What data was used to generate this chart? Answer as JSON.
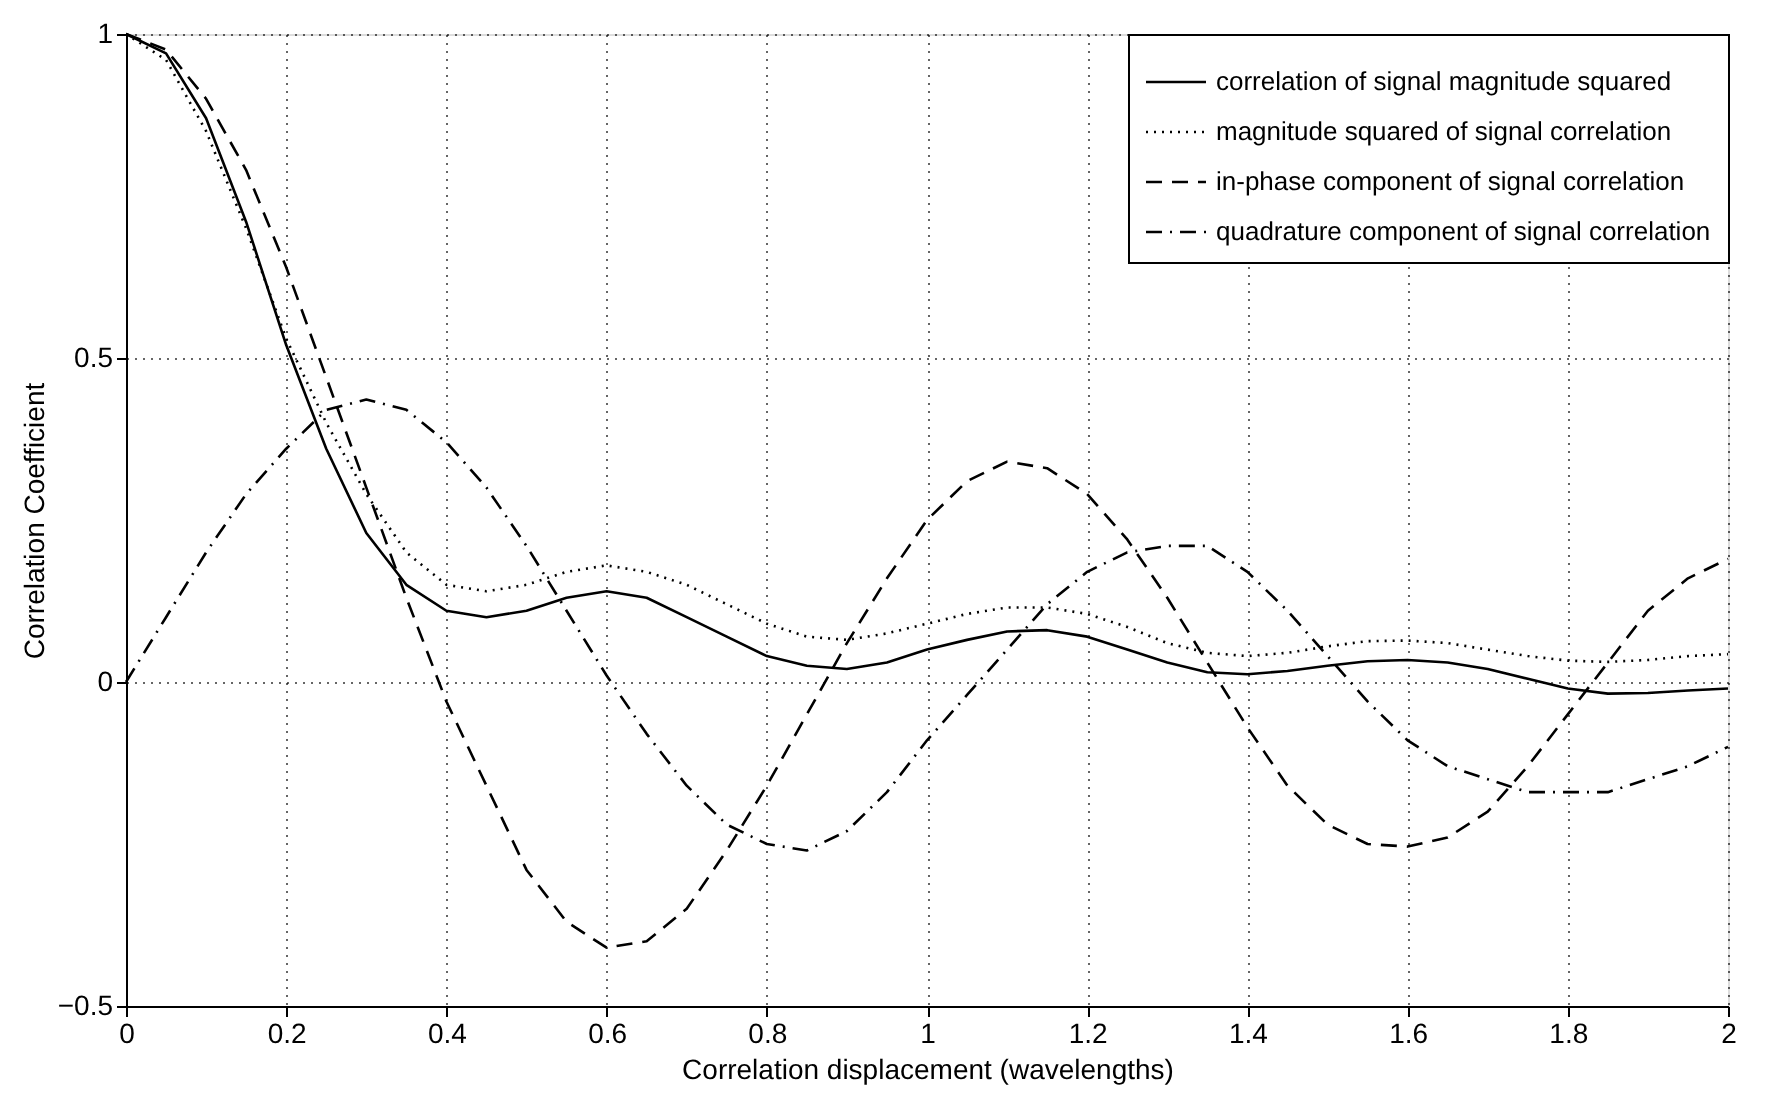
{
  "chart_data": {
    "type": "line",
    "xlabel": "Correlation displacement (wavelengths)",
    "ylabel": "Correlation Coefficient",
    "x": [
      0,
      0.05,
      0.1,
      0.15,
      0.2,
      0.25,
      0.3,
      0.35,
      0.4,
      0.45,
      0.5,
      0.55,
      0.6,
      0.65,
      0.7,
      0.75,
      0.8,
      0.85,
      0.9,
      0.95,
      1.0,
      1.05,
      1.1,
      1.15,
      1.2,
      1.25,
      1.3,
      1.35,
      1.4,
      1.45,
      1.5,
      1.55,
      1.6,
      1.65,
      1.7,
      1.75,
      1.8,
      1.85,
      1.9,
      1.95,
      2.0
    ],
    "series": [
      {
        "name": "correlation of signal magnitude squared",
        "color": "#000000",
        "line_style": "solid",
        "values": [
          1,
          0.97,
          0.87,
          0.71,
          0.52,
          0.36,
          0.23,
          0.15,
          0.11,
          0.1,
          0.11,
          0.13,
          0.14,
          0.13,
          0.1,
          0.07,
          0.04,
          0.025,
          0.02,
          0.03,
          0.05,
          0.065,
          0.078,
          0.08,
          0.07,
          0.05,
          0.03,
          0.015,
          0.012,
          0.017,
          0.025,
          0.032,
          0.034,
          0.03,
          0.02,
          0.005,
          -0.01,
          -0.018,
          -0.017,
          -0.013,
          -0.01
        ]
      },
      {
        "name": "magnitude squared of signal correlation",
        "color": "#000000",
        "line_style": "dotted",
        "values": [
          1,
          0.96,
          0.85,
          0.7,
          0.53,
          0.4,
          0.29,
          0.2,
          0.15,
          0.14,
          0.15,
          0.17,
          0.18,
          0.17,
          0.15,
          0.12,
          0.09,
          0.07,
          0.065,
          0.075,
          0.09,
          0.105,
          0.115,
          0.115,
          0.105,
          0.085,
          0.06,
          0.045,
          0.04,
          0.045,
          0.055,
          0.063,
          0.064,
          0.06,
          0.05,
          0.04,
          0.033,
          0.031,
          0.034,
          0.04,
          0.043
        ]
      },
      {
        "name": "in-phase component of signal correlation",
        "color": "#000000",
        "line_style": "dashed",
        "values": [
          1,
          0.976,
          0.9,
          0.79,
          0.64,
          0.47,
          0.3,
          0.13,
          -0.03,
          -0.16,
          -0.29,
          -0.37,
          -0.41,
          -0.4,
          -0.35,
          -0.26,
          -0.16,
          -0.05,
          0.06,
          0.16,
          0.25,
          0.31,
          0.34,
          0.33,
          0.29,
          0.22,
          0.13,
          0.03,
          -0.07,
          -0.16,
          -0.22,
          -0.25,
          -0.254,
          -0.24,
          -0.2,
          -0.13,
          -0.05,
          0.03,
          0.11,
          0.16,
          0.19
        ]
      },
      {
        "name": "quadrature component of signal correlation",
        "color": "#000000",
        "line_style": "dashdot",
        "values": [
          0,
          0.1,
          0.2,
          0.29,
          0.36,
          0.42,
          0.436,
          0.42,
          0.37,
          0.3,
          0.21,
          0.11,
          0.01,
          -0.08,
          -0.16,
          -0.22,
          -0.25,
          -0.26,
          -0.23,
          -0.17,
          -0.09,
          -0.02,
          0.05,
          0.12,
          0.17,
          0.2,
          0.21,
          0.21,
          0.17,
          0.11,
          0.04,
          -0.03,
          -0.09,
          -0.13,
          -0.15,
          -0.17,
          -0.17,
          -0.17,
          -0.15,
          -0.13,
          -0.1
        ]
      }
    ],
    "xlim": [
      0,
      2
    ],
    "xticks": [
      0,
      0.2,
      0.4,
      0.6,
      0.8,
      1,
      1.2,
      1.4,
      1.6,
      1.8,
      2
    ],
    "ylim": [
      -0.5,
      1
    ],
    "yticks": [
      -0.5,
      0,
      0.5,
      1
    ],
    "grid": true,
    "legend": "top right",
    "marker": "none"
  }
}
